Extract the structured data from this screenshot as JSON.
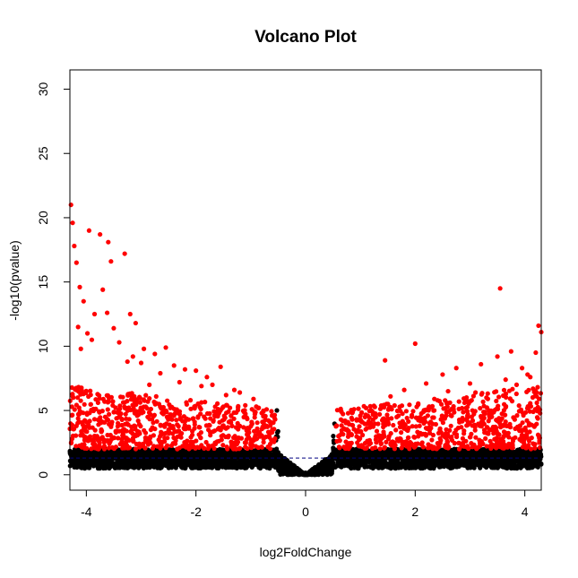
{
  "chart_data": {
    "type": "scatter",
    "title": "Volcano Plot",
    "xlabel": "log2FoldChange",
    "ylabel": "-log10(pvalue)",
    "xlim": [
      -4.3,
      4.3
    ],
    "ylim": [
      -1.2,
      31.5
    ],
    "xticks": [
      -4,
      -2,
      0,
      2,
      4
    ],
    "yticks": [
      0,
      5,
      10,
      15,
      20,
      25,
      30
    ],
    "grid": false,
    "legend": "none",
    "threshold_line": {
      "y": 1.3,
      "style": "dashed",
      "color": "#000080"
    },
    "colors": {
      "significant": "#ff0000",
      "not_significant": "#000000"
    },
    "series": [
      {
        "color": "#ff0000",
        "x": [
          -4.28,
          -4.25,
          -4.22,
          -4.18,
          -4.12,
          -4.05,
          -3.95,
          -3.85,
          -3.75,
          -3.62,
          -3.6,
          -3.55,
          -3.3,
          -3.2,
          -3.1,
          -2.95,
          -2.75,
          -2.55,
          -2.4,
          -2.2,
          -2.0,
          -1.8,
          -1.55,
          -1.3,
          -1.2,
          -0.95,
          -0.8,
          -4.15,
          -4.1,
          -3.98,
          -3.9,
          -3.7,
          -3.5,
          -3.4,
          -3.25,
          -3.15,
          -3.0,
          -2.85,
          -2.65,
          -2.3,
          -2.1,
          -1.9,
          -1.7,
          -1.45,
          -1.1,
          -0.9,
          -0.75,
          -0.65,
          3.55,
          4.25,
          4.3,
          4.2,
          4.1,
          2.0,
          1.45,
          3.0,
          3.2,
          3.5,
          3.65,
          3.75,
          3.85,
          3.95,
          4.05,
          4.15,
          2.75,
          2.5,
          2.2,
          1.8,
          1.55,
          1.2,
          1.0,
          0.85,
          0.7,
          0.6,
          3.3,
          3.1,
          2.9,
          2.6,
          2.35
        ],
        "y": [
          21.0,
          19.6,
          17.8,
          16.5,
          14.6,
          13.5,
          19.0,
          12.5,
          18.7,
          12.6,
          18.1,
          16.6,
          17.2,
          12.5,
          11.8,
          9.8,
          9.4,
          9.9,
          8.5,
          8.2,
          8.1,
          7.6,
          8.4,
          6.6,
          6.4,
          5.9,
          4.8,
          11.5,
          9.8,
          11.0,
          10.5,
          14.4,
          11.4,
          10.3,
          8.8,
          9.2,
          8.7,
          7.0,
          7.9,
          7.2,
          5.8,
          6.9,
          7.0,
          6.2,
          5.4,
          5.3,
          3.7,
          3.2,
          14.5,
          11.6,
          11.1,
          9.5,
          7.6,
          10.2,
          8.9,
          7.1,
          8.6,
          9.2,
          7.4,
          9.6,
          7.0,
          8.3,
          7.8,
          6.7,
          8.3,
          7.8,
          7.1,
          6.6,
          6.1,
          5.0,
          4.6,
          4.3,
          3.6,
          3.0,
          6.0,
          6.4,
          5.6,
          6.5,
          5.9
        ]
      },
      {
        "color": "#000000",
        "x": [
          -4.25,
          -4.0,
          -3.7,
          -3.4,
          -3.1,
          -2.8,
          -2.5,
          -2.2,
          -1.9,
          -1.6,
          -1.3,
          -1.0,
          -0.8,
          -0.6,
          -0.45,
          -0.3,
          -0.15,
          0.0,
          0.15,
          0.3,
          0.45,
          0.6,
          0.8,
          1.0,
          1.3,
          1.6,
          1.9,
          2.2,
          2.5,
          2.8,
          3.1,
          3.4,
          3.7,
          4.0,
          4.25
        ],
        "y": [
          1.2,
          1.6,
          0.9,
          1.8,
          0.7,
          1.5,
          1.1,
          1.9,
          0.8,
          1.4,
          1.7,
          1.0,
          1.2,
          0.9,
          0.6,
          0.4,
          0.25,
          0.15,
          0.25,
          0.4,
          0.6,
          0.9,
          1.1,
          1.3,
          1.8,
          0.9,
          1.5,
          1.2,
          1.9,
          0.8,
          1.6,
          1.3,
          1.0,
          1.7,
          1.4
        ]
      }
    ]
  }
}
